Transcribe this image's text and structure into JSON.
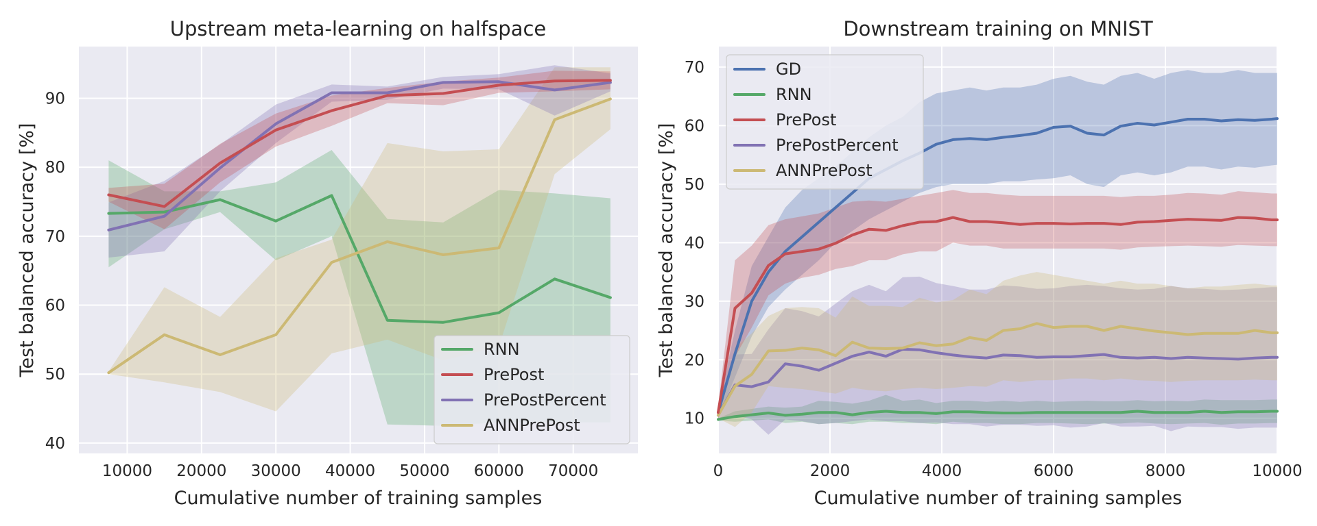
{
  "figure": {
    "background": "#ffffff",
    "panel_background": "#eaeaf2",
    "grid_color": "#ffffff",
    "series_colors": {
      "GD": "#4c72b0",
      "RNN": "#55a868",
      "PrePost": "#c44e52",
      "PrePostPercent": "#8172b3",
      "ANNPrePost": "#ccb974"
    }
  },
  "chart_data": [
    {
      "type": "line",
      "title": "Upstream meta-learning on halfspace",
      "xlabel": "Cumulative number of training samples",
      "ylabel": "Test balanced accuracy [%]",
      "xlim": [
        3500,
        78700
      ],
      "ylim": [
        38.5,
        97.5
      ],
      "xticks": [
        10000,
        20000,
        30000,
        40000,
        50000,
        60000,
        70000
      ],
      "xtick_labels": [
        "10000",
        "20000",
        "30000",
        "40000",
        "50000",
        "60000",
        "70000"
      ],
      "yticks": [
        40,
        50,
        60,
        70,
        80,
        90
      ],
      "ytick_labels": [
        "40",
        "50",
        "60",
        "70",
        "80",
        "90"
      ],
      "legend_loc": "lower-right",
      "legend": [
        "RNN",
        "PrePost",
        "PrePostPercent",
        "ANNPrePost"
      ],
      "x": [
        7500,
        15000,
        22500,
        30000,
        37500,
        45000,
        52500,
        60000,
        67500,
        75000
      ],
      "series": [
        {
          "name": "RNN",
          "color": "#55a868",
          "values": [
            73.3,
            73.5,
            75.3,
            72.2,
            75.9,
            57.8,
            57.5,
            58.9,
            63.8,
            61.1
          ],
          "lower": [
            65.5,
            71.0,
            73.5,
            66.5,
            70.0,
            42.7,
            42.5,
            43.0,
            43.0,
            43.0
          ],
          "upper": [
            81.0,
            76.5,
            76.5,
            77.8,
            82.5,
            72.5,
            72.0,
            76.7,
            76.2,
            75.5
          ]
        },
        {
          "name": "ANNPrePost",
          "color": "#ccb974",
          "values": [
            50.2,
            55.7,
            52.8,
            55.7,
            66.2,
            69.2,
            67.3,
            68.3,
            86.9,
            89.9
          ],
          "lower": [
            50.0,
            48.8,
            47.4,
            44.6,
            53.0,
            55.0,
            52.0,
            54.0,
            79.0,
            85.5
          ],
          "upper": [
            50.4,
            62.6,
            58.3,
            66.8,
            69.5,
            83.5,
            82.3,
            82.6,
            94.5,
            94.5
          ]
        },
        {
          "name": "PrePostPercent",
          "color": "#8172b3",
          "values": [
            70.9,
            72.9,
            79.9,
            86.3,
            90.8,
            90.8,
            92.3,
            92.4,
            91.2,
            92.3
          ],
          "lower": [
            66.9,
            67.8,
            76.5,
            83.5,
            89.5,
            89.8,
            91.4,
            91.3,
            87.5,
            91.0
          ],
          "upper": [
            74.9,
            78.0,
            83.3,
            89.1,
            92.0,
            91.7,
            93.1,
            93.5,
            94.8,
            93.6
          ]
        },
        {
          "name": "PrePost",
          "color": "#c44e52",
          "values": [
            76.0,
            74.3,
            80.6,
            85.4,
            88.2,
            90.4,
            90.7,
            91.9,
            92.5,
            92.6
          ],
          "lower": [
            75.0,
            71.0,
            77.8,
            83.0,
            86.0,
            89.3,
            89.0,
            90.8,
            91.0,
            91.3
          ],
          "upper": [
            77.0,
            77.6,
            83.4,
            87.8,
            90.4,
            91.5,
            92.4,
            93.0,
            94.0,
            93.9
          ]
        }
      ]
    },
    {
      "type": "line",
      "title": "Downstream training on MNIST",
      "xlabel": "Cumulative number of training samples",
      "ylabel": "Test balanced accuracy [%]",
      "xlim": [
        0,
        10000
      ],
      "ylim": [
        4.0,
        73.5
      ],
      "xticks": [
        0,
        2000,
        4000,
        6000,
        8000,
        10000
      ],
      "xtick_labels": [
        "0",
        "2000",
        "4000",
        "6000",
        "8000",
        "10000"
      ],
      "yticks": [
        10,
        20,
        30,
        40,
        50,
        60,
        70
      ],
      "ytick_labels": [
        "10",
        "20",
        "30",
        "40",
        "50",
        "60",
        "70"
      ],
      "legend_loc": "upper-left",
      "legend": [
        "GD",
        "RNN",
        "PrePost",
        "PrePostPercent",
        "ANNPrePost"
      ],
      "x": [
        0,
        300,
        600,
        900,
        1200,
        1500,
        1800,
        2100,
        2400,
        2700,
        3000,
        3300,
        3600,
        3900,
        4200,
        4500,
        4800,
        5100,
        5400,
        5700,
        6000,
        6300,
        6600,
        6900,
        7200,
        7500,
        7800,
        8100,
        8400,
        8700,
        9000,
        9300,
        9600,
        9900,
        10000
      ],
      "series": [
        {
          "name": "GD",
          "color": "#4c72b0",
          "values": [
            11.0,
            21.0,
            30.0,
            35.0,
            38.5,
            41.0,
            43.5,
            46.0,
            48.5,
            51.0,
            52.5,
            54.0,
            55.3,
            56.8,
            57.6,
            57.8,
            57.6,
            58.0,
            58.3,
            58.7,
            59.7,
            59.9,
            58.7,
            58.4,
            59.9,
            60.4,
            60.1,
            60.6,
            61.1,
            61.1,
            60.8,
            61.0,
            60.9,
            61.1,
            61.2
          ],
          "lower": [
            10.0,
            17.0,
            24.0,
            29.0,
            32.0,
            34.5,
            37.0,
            40.0,
            42.0,
            44.0,
            45.5,
            47.0,
            48.5,
            49.5,
            50.0,
            50.0,
            50.0,
            50.5,
            50.5,
            50.8,
            51.0,
            51.5,
            50.0,
            49.5,
            51.5,
            52.0,
            51.5,
            52.0,
            53.0,
            53.0,
            52.5,
            53.0,
            52.8,
            53.2,
            53.3
          ],
          "upper": [
            12.0,
            25.0,
            36.0,
            41.0,
            46.0,
            49.0,
            51.0,
            53.0,
            55.5,
            58.0,
            60.0,
            61.5,
            64.0,
            65.5,
            66.0,
            66.5,
            66.0,
            66.5,
            66.5,
            67.0,
            68.0,
            68.5,
            67.5,
            67.0,
            68.5,
            69.0,
            68.0,
            69.0,
            69.5,
            69.0,
            69.0,
            69.5,
            69.0,
            69.0,
            69.0
          ]
        },
        {
          "name": "RNN",
          "color": "#55a868",
          "values": [
            9.8,
            10.3,
            10.6,
            10.9,
            10.5,
            10.7,
            11.0,
            11.0,
            10.6,
            11.0,
            11.2,
            11.0,
            11.0,
            10.8,
            11.1,
            11.1,
            11.0,
            10.9,
            10.9,
            11.0,
            11.0,
            11.0,
            11.0,
            11.0,
            11.0,
            11.2,
            11.0,
            11.0,
            11.0,
            11.2,
            11.0,
            11.1,
            11.1,
            11.2,
            11.2
          ],
          "lower": [
            9.6,
            9.4,
            9.6,
            9.8,
            9.2,
            9.4,
            9.0,
            9.2,
            9.0,
            9.4,
            9.4,
            9.2,
            9.2,
            9.0,
            9.4,
            9.2,
            9.2,
            9.0,
            9.0,
            9.2,
            9.2,
            9.1,
            9.0,
            9.1,
            9.1,
            9.3,
            9.1,
            9.0,
            9.1,
            9.2,
            8.9,
            9.1,
            9.1,
            9.2,
            9.2
          ],
          "upper": [
            10.0,
            11.2,
            11.6,
            12.0,
            11.8,
            12.0,
            13.0,
            12.8,
            12.5,
            13.0,
            14.0,
            13.0,
            13.2,
            12.6,
            13.0,
            13.0,
            12.8,
            13.0,
            12.8,
            13.0,
            12.8,
            12.9,
            13.0,
            12.9,
            12.9,
            13.1,
            12.9,
            13.0,
            12.9,
            13.2,
            13.1,
            13.1,
            13.1,
            13.2,
            13.2
          ]
        },
        {
          "name": "PrePostPercent",
          "color": "#8172b3",
          "values": [
            10.5,
            15.7,
            15.4,
            16.2,
            19.3,
            18.9,
            18.2,
            19.4,
            20.6,
            21.3,
            20.6,
            21.8,
            21.7,
            21.2,
            20.8,
            20.5,
            20.3,
            20.8,
            20.7,
            20.4,
            20.5,
            20.5,
            20.7,
            20.9,
            20.4,
            20.3,
            20.4,
            20.2,
            20.4,
            20.3,
            20.2,
            20.1,
            20.3,
            20.4,
            20.4
          ],
          "lower": [
            9.5,
            10.5,
            9.8,
            7.2,
            9.8,
            9.5,
            9.0,
            9.2,
            9.5,
            9.8,
            9.5,
            9.5,
            9.2,
            9.3,
            9.0,
            9.0,
            8.6,
            8.9,
            8.9,
            8.7,
            8.8,
            8.4,
            8.6,
            9.2,
            8.6,
            8.6,
            8.7,
            7.8,
            8.6,
            8.5,
            8.5,
            8.2,
            8.4,
            8.4,
            8.4
          ],
          "upper": [
            11.5,
            20.9,
            21.0,
            25.2,
            28.8,
            28.3,
            27.4,
            29.6,
            31.7,
            32.8,
            31.7,
            34.1,
            34.2,
            33.1,
            32.6,
            32.0,
            32.0,
            32.7,
            32.5,
            32.1,
            32.2,
            32.6,
            32.8,
            32.6,
            32.2,
            32.0,
            32.1,
            32.6,
            32.2,
            32.1,
            31.9,
            32.0,
            32.2,
            32.4,
            32.4
          ]
        },
        {
          "name": "ANNPrePost",
          "color": "#ccb974",
          "values": [
            10.5,
            15.5,
            17.5,
            21.5,
            21.6,
            22.0,
            21.7,
            20.7,
            23.0,
            22.0,
            21.9,
            22.0,
            22.9,
            22.4,
            22.7,
            23.8,
            23.3,
            25.0,
            25.3,
            26.2,
            25.5,
            25.7,
            25.7,
            25.0,
            25.7,
            25.3,
            24.9,
            24.6,
            24.3,
            24.5,
            24.5,
            24.5,
            25.0,
            24.6,
            24.6
          ],
          "lower": [
            10.0,
            8.5,
            11.0,
            15.5,
            15.2,
            15.0,
            14.6,
            14.2,
            15.2,
            14.8,
            14.6,
            15.0,
            15.2,
            15.0,
            15.2,
            15.5,
            15.4,
            16.5,
            16.2,
            16.5,
            16.5,
            16.8,
            16.8,
            16.5,
            16.8,
            16.5,
            16.4,
            16.2,
            16.4,
            16.5,
            16.5,
            16.5,
            16.6,
            16.5,
            16.5
          ],
          "upper": [
            11.0,
            22.0,
            24.5,
            27.5,
            28.8,
            29.0,
            28.8,
            27.2,
            30.8,
            29.2,
            29.2,
            29.0,
            30.6,
            29.8,
            30.2,
            32.0,
            31.2,
            33.5,
            34.4,
            35.0,
            34.5,
            34.0,
            33.5,
            33.0,
            33.5,
            33.0,
            33.0,
            32.6,
            32.2,
            32.5,
            32.5,
            32.8,
            33.0,
            32.7,
            32.7
          ]
        },
        {
          "name": "PrePost",
          "color": "#c44e52",
          "values": [
            11.0,
            28.8,
            31.4,
            36.1,
            38.1,
            38.5,
            38.9,
            39.9,
            41.3,
            42.3,
            42.1,
            42.9,
            43.5,
            43.6,
            44.3,
            43.6,
            43.6,
            43.4,
            43.1,
            43.3,
            43.3,
            43.2,
            43.3,
            43.3,
            43.1,
            43.5,
            43.6,
            43.8,
            44.0,
            43.9,
            43.8,
            44.3,
            44.2,
            43.9,
            43.9
          ],
          "lower": [
            10.0,
            20.5,
            25.5,
            31.0,
            33.0,
            34.0,
            34.5,
            35.5,
            36.0,
            37.0,
            37.0,
            38.0,
            38.5,
            38.5,
            40.0,
            39.5,
            39.5,
            39.0,
            39.0,
            39.0,
            39.0,
            39.0,
            39.0,
            39.0,
            38.8,
            39.2,
            39.3,
            39.4,
            39.5,
            39.4,
            39.3,
            39.6,
            39.5,
            39.4,
            39.4
          ],
          "upper": [
            12.0,
            37.0,
            39.5,
            43.0,
            44.0,
            44.5,
            45.0,
            46.0,
            47.0,
            47.2,
            47.0,
            47.5,
            48.0,
            48.5,
            49.0,
            48.5,
            48.5,
            48.2,
            48.0,
            48.0,
            48.0,
            48.0,
            48.0,
            48.0,
            47.8,
            48.0,
            48.0,
            48.2,
            48.5,
            48.4,
            48.2,
            48.8,
            48.6,
            48.4,
            48.4
          ]
        }
      ]
    }
  ]
}
